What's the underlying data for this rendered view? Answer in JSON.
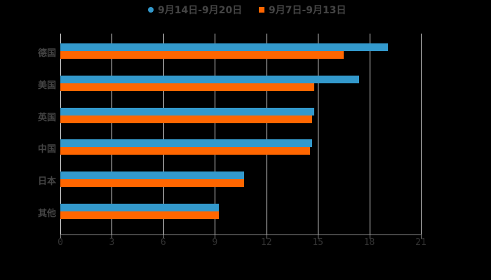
{
  "chart_data": {
    "type": "bar",
    "orientation": "horizontal",
    "categories": [
      "德国",
      "美国",
      "英国",
      "中国",
      "日本",
      "其他"
    ],
    "series": [
      {
        "name": "9月14日-9月20日",
        "color": "#3399cc",
        "values": [
          19.1,
          17.4,
          14.8,
          14.65,
          10.7,
          9.25
        ]
      },
      {
        "name": "9月7日-9月13日",
        "color": "#ff6600",
        "values": [
          16.5,
          14.8,
          14.65,
          14.55,
          10.7,
          9.25
        ]
      }
    ],
    "xlim": [
      0,
      21
    ],
    "xticks": [
      0,
      3,
      6,
      9,
      12,
      15,
      18,
      21
    ],
    "grid": true,
    "legend_position": "top",
    "title": "",
    "xlabel": "",
    "ylabel": ""
  },
  "legend": {
    "series1": "9月14日-9月20日",
    "series2": "9月7日-9月13日"
  }
}
